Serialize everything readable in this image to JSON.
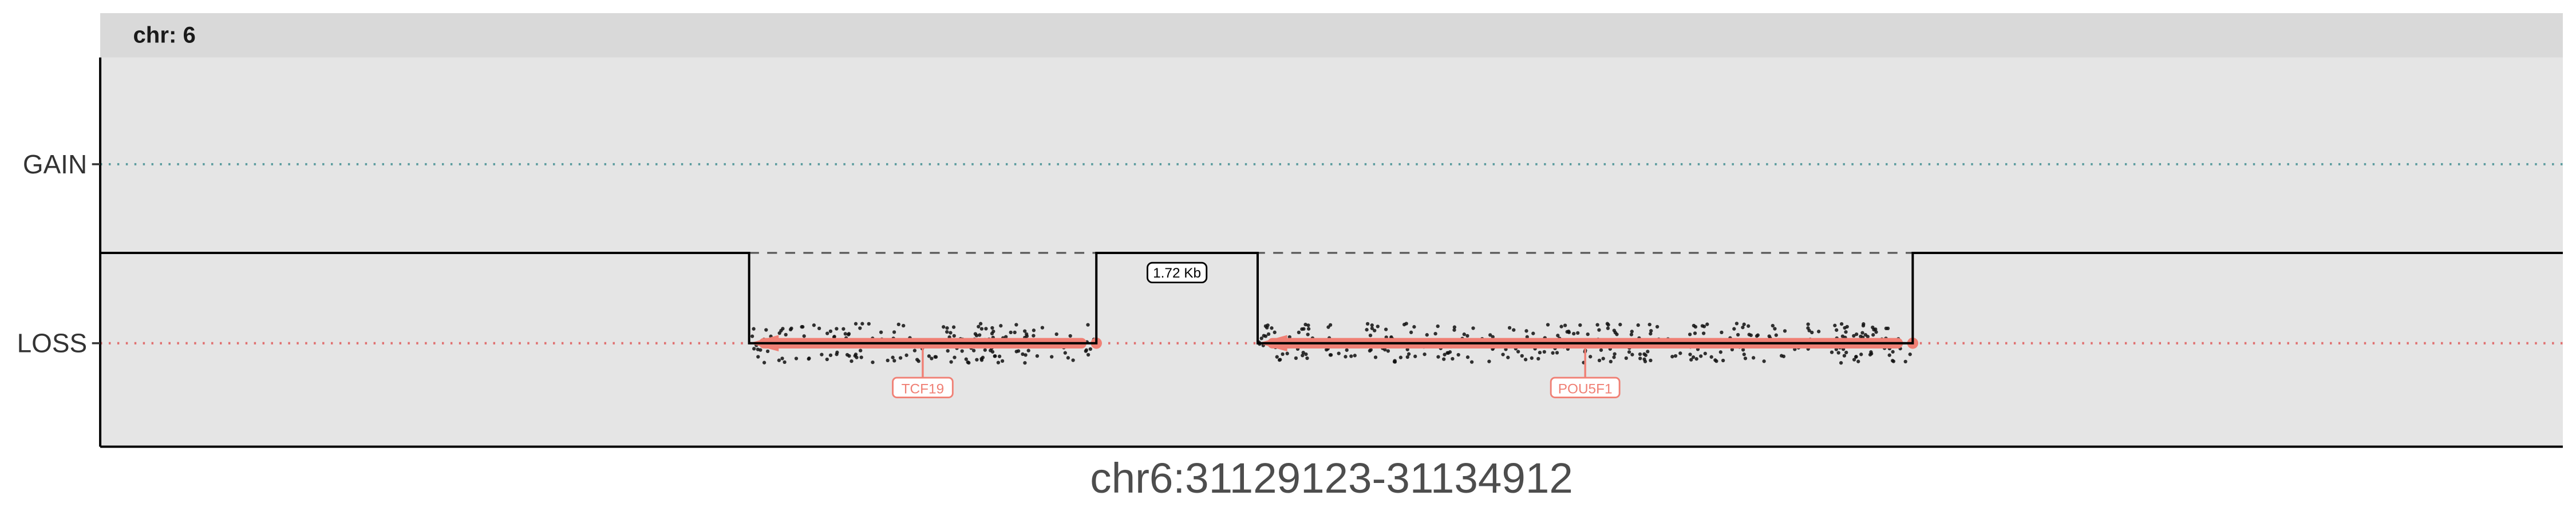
{
  "chart_data": {
    "type": "scatter",
    "facet": "chr: 6",
    "xlabel": "chr6:31129123-31134912",
    "y_categories": [
      "GAIN",
      "LOSS"
    ],
    "reference_lines": [
      {
        "category": "GAIN",
        "color": "#5f9ea0",
        "style": "dotted"
      },
      {
        "category": "LOSS",
        "color": "#e07070",
        "style": "dotted"
      }
    ],
    "x_range": [
      0,
      100
    ],
    "loss_segments": [
      {
        "start": 26.35,
        "end": 40.45,
        "state": "LOSS"
      },
      {
        "start": 47.0,
        "end": 73.6,
        "state": "LOSS"
      }
    ],
    "gaps": [
      {
        "start": 40.45,
        "end": 47.0,
        "label": "1.72 Kb"
      }
    ],
    "genes": [
      {
        "name": "TCF19",
        "start": 26.35,
        "end": 40.45,
        "strand": "-",
        "color": "#f08075"
      },
      {
        "name": "POU5F1",
        "start": 47.0,
        "end": 73.6,
        "strand": "-",
        "color": "#f08075"
      }
    ],
    "grid": false,
    "panel_color": "#e5e5e5",
    "strip_color": "#d9d9d9"
  }
}
